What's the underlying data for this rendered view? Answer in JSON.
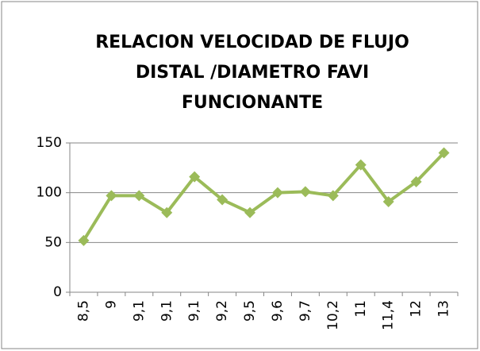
{
  "chart_data": {
    "type": "line",
    "title": [
      "RELACION VELOCIDAD DE FLUJO",
      "DISTAL /DIAMETRO FAVI",
      "FUNCIONANTE"
    ],
    "categories": [
      "8,5",
      "9",
      "9,1",
      "9,1",
      "9,1",
      "9,2",
      "9,5",
      "9,6",
      "9,7",
      "10,2",
      "11",
      "11,4",
      "12",
      "13"
    ],
    "values": [
      52,
      97,
      97,
      80,
      116,
      93,
      80,
      100,
      101,
      97,
      128,
      91,
      111,
      140
    ],
    "color": "#9bbb59",
    "ylim": [
      0,
      150
    ],
    "yticks": [
      0,
      50,
      100,
      150
    ],
    "grid": true
  }
}
